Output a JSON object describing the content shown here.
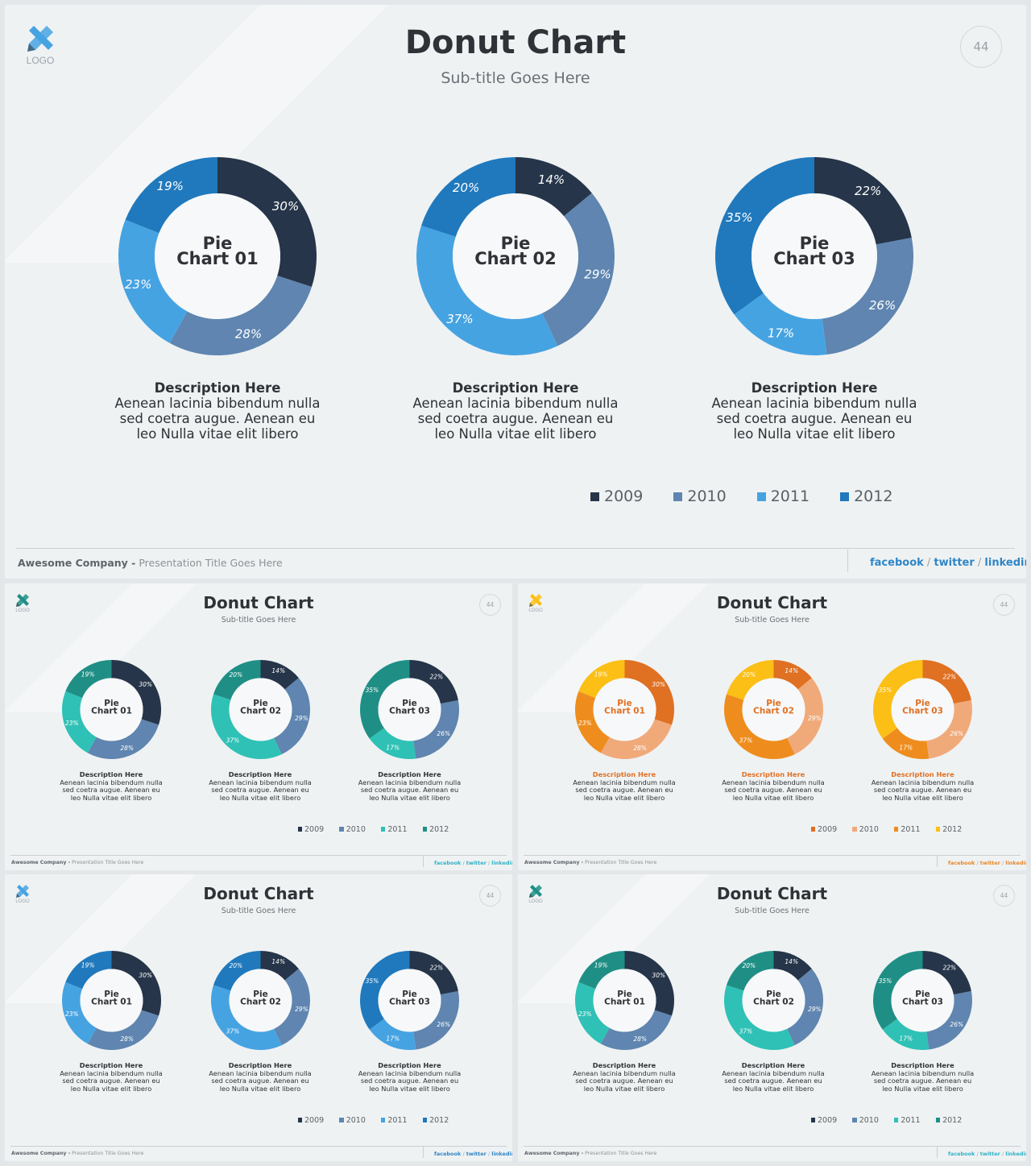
{
  "slide": {
    "title": "Donut Chart",
    "subtitle": "Sub-title Goes Here",
    "page_number": "44",
    "logo_text": "LOGO",
    "description_title": "Description Here",
    "description_line1": "Aenean lacinia bibendum nulla",
    "description_line2": "sed coetra augue. Aenean eu",
    "description_line3": "leo  Nulla vitae elit libero",
    "footer_company": "Awesome Company -",
    "footer_presentation": " Presentation Title Goes Here",
    "social": [
      "facebook",
      "twitter",
      "linkedin"
    ],
    "legend": [
      "2009",
      "2010",
      "2011",
      "2012"
    ]
  },
  "chart_data": {
    "type": "pie",
    "categories": [
      "2009",
      "2010",
      "2011",
      "2012"
    ],
    "series": [
      {
        "name": "Pie Chart 01",
        "values": [
          30,
          28,
          23,
          19
        ]
      },
      {
        "name": "Pie Chart 02",
        "values": [
          14,
          29,
          37,
          20
        ]
      },
      {
        "name": "Pie Chart 03",
        "values": [
          22,
          26,
          17,
          35
        ]
      }
    ]
  },
  "themes": [
    {
      "name": "blue",
      "colors": [
        "#263549",
        "#5f85b0",
        "#46a3e2",
        "#2079bd"
      ],
      "accent": "#2f86c7",
      "logo": "#46a3e2",
      "title_color": "#2f3236"
    },
    {
      "name": "teal",
      "colors": [
        "#263549",
        "#5f85b0",
        "#2fc1b5",
        "#1f8f86"
      ],
      "accent": "#2fb2c7",
      "logo": "#1f8f86",
      "title_color": "#2f3236"
    },
    {
      "name": "orange",
      "colors": [
        "#e07022",
        "#f0aa7a",
        "#ee8d1d",
        "#fbbf16"
      ],
      "accent": "#e8872a",
      "logo": "#fbbf16",
      "title_color": "#e07022"
    },
    {
      "name": "blue",
      "colors": [
        "#263549",
        "#5f85b0",
        "#46a3e2",
        "#2079bd"
      ],
      "accent": "#2f86c7",
      "logo": "#46a3e2",
      "title_color": "#2f3236"
    },
    {
      "name": "teal",
      "colors": [
        "#263549",
        "#5f85b0",
        "#2fc1b5",
        "#1f8f86"
      ],
      "accent": "#2fb2c7",
      "logo": "#1f8f86",
      "title_color": "#2f3236"
    }
  ]
}
